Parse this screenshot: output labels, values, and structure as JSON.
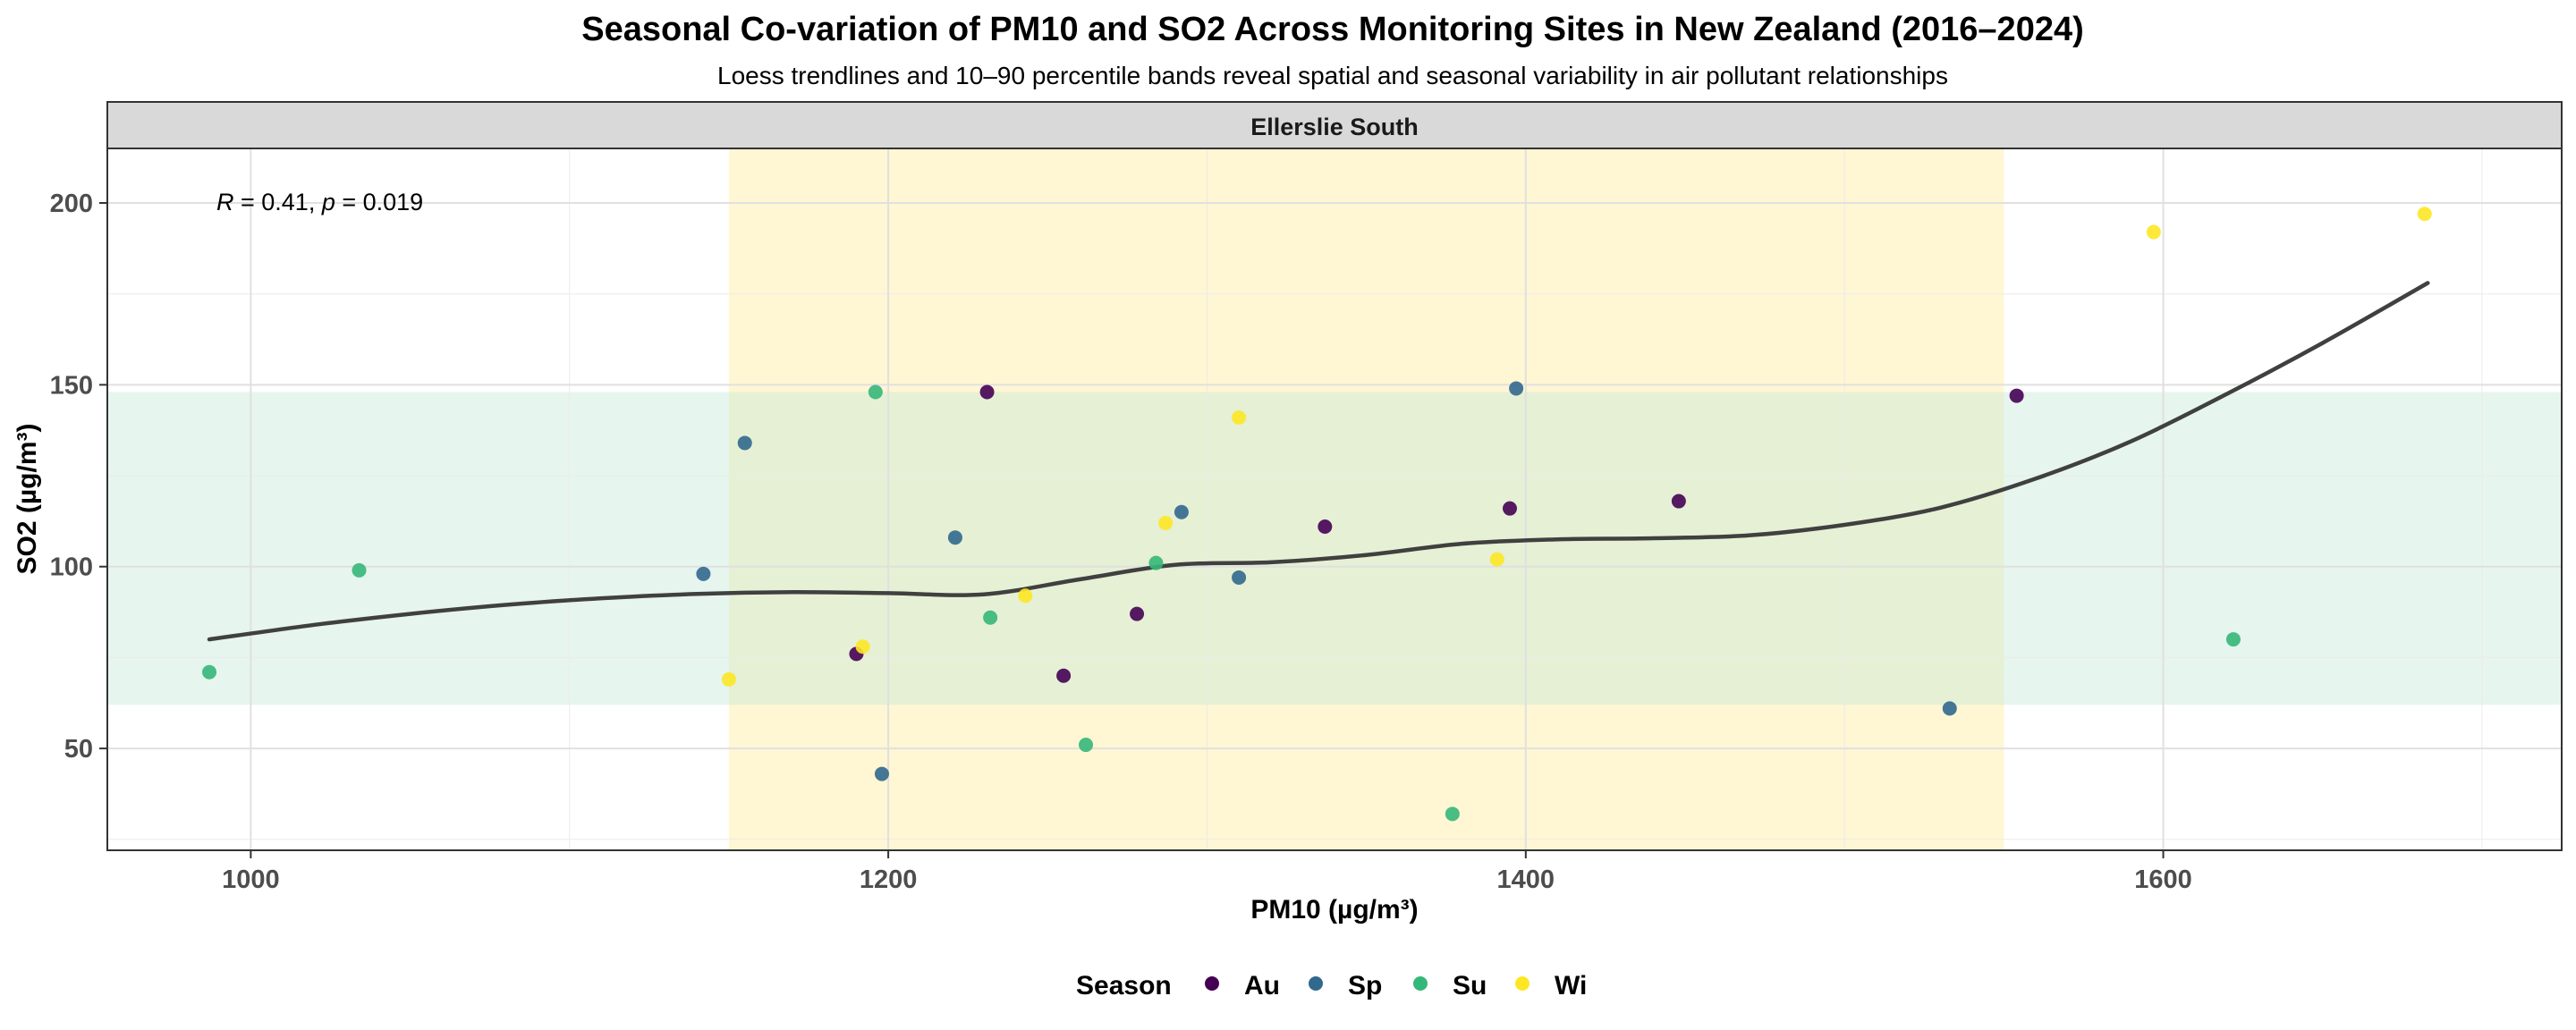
{
  "chart_data": {
    "type": "scatter",
    "title": "Seasonal Co-variation of  PM10  and  SO2  Across Monitoring Sites in New Zealand (2016–2024)",
    "subtitle": "Loess trendlines and 10–90 percentile bands reveal spatial and seasonal variability in air pollutant relationships",
    "panel_label": "Ellerslie South",
    "xlabel": "PM10 (µg/m³)",
    "ylabel": "SO2 (µg/m³)",
    "xlim": [
      955,
      1725
    ],
    "ylim": [
      22,
      215
    ],
    "x_ticks": [
      1000,
      1200,
      1400,
      1600
    ],
    "y_ticks": [
      50,
      100,
      150,
      200
    ],
    "grid": true,
    "annotation": {
      "r_symbol": "R",
      "r_value": " = 0.41, ",
      "p_symbol": "p",
      "p_value": " = 0.019"
    },
    "bands": {
      "x_band": [
        1150,
        1550
      ],
      "y_band": [
        62,
        148
      ],
      "x_band_color": "#FFF2C2",
      "y_band_color": "#C7E9D6"
    },
    "trendline": {
      "x": [
        987,
        1020,
        1050,
        1080,
        1110,
        1140,
        1170,
        1200,
        1230,
        1260,
        1290,
        1320,
        1350,
        1380,
        1410,
        1440,
        1470,
        1500,
        1530,
        1560,
        1590,
        1620,
        1650,
        1683
      ],
      "y": [
        80,
        84,
        87,
        89.5,
        91.3,
        92.5,
        93,
        92.7,
        92.4,
        96.5,
        100.5,
        101.2,
        103.2,
        106.3,
        107.5,
        107.8,
        108.6,
        111.5,
        116.2,
        124.2,
        134.5,
        147.5,
        161.5,
        178
      ],
      "color": "#404040"
    },
    "legend": {
      "title": "Season",
      "position": "bottom"
    },
    "series": [
      {
        "name": "Au",
        "color": "#440154",
        "points": [
          [
            1190,
            76
          ],
          [
            1231,
            148
          ],
          [
            1255,
            70
          ],
          [
            1278,
            87
          ],
          [
            1337,
            111
          ],
          [
            1395,
            116
          ],
          [
            1448,
            118
          ],
          [
            1554,
            147
          ]
        ]
      },
      {
        "name": "Sp",
        "color": "#31688E",
        "points": [
          [
            1142,
            98
          ],
          [
            1155,
            134
          ],
          [
            1198,
            43
          ],
          [
            1221,
            108
          ],
          [
            1292,
            115
          ],
          [
            1310,
            97
          ],
          [
            1397,
            149
          ],
          [
            1533,
            61
          ]
        ]
      },
      {
        "name": "Su",
        "color": "#35B779",
        "points": [
          [
            987,
            71
          ],
          [
            1034,
            99
          ],
          [
            1196,
            148
          ],
          [
            1232,
            86
          ],
          [
            1262,
            51
          ],
          [
            1284,
            101
          ],
          [
            1377,
            32
          ],
          [
            1622,
            80
          ]
        ]
      },
      {
        "name": "Wi",
        "color": "#FDE725",
        "points": [
          [
            1150,
            69
          ],
          [
            1192,
            78
          ],
          [
            1243,
            92
          ],
          [
            1287,
            112
          ],
          [
            1310,
            141
          ],
          [
            1391,
            102
          ],
          [
            1597,
            192
          ],
          [
            1682,
            197
          ]
        ]
      }
    ]
  }
}
